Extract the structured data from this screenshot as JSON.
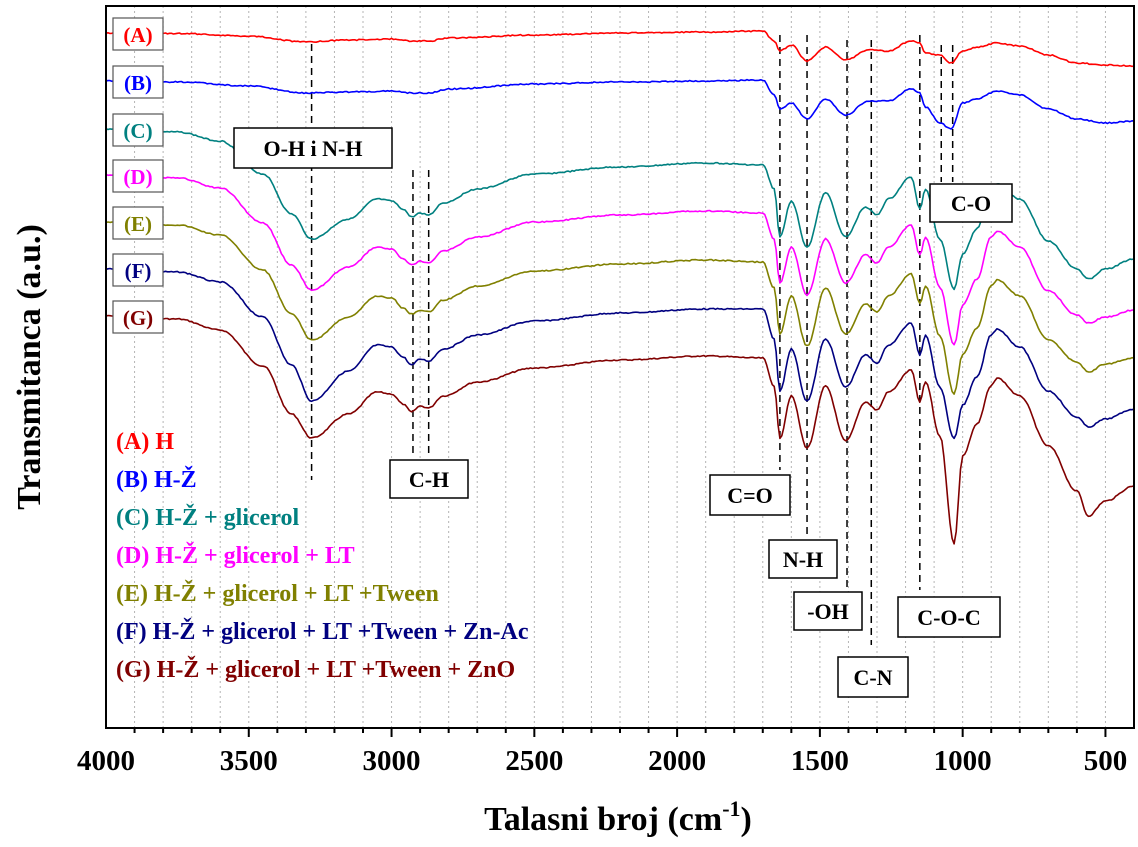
{
  "chart_data": {
    "type": "line",
    "title": "",
    "xlabel": "Talasni broj (cm",
    "xlabel_sup": "-1",
    "xlabel_close": ")",
    "ylabel": "Transmitanca (a.u.)",
    "xlim": [
      4000,
      400
    ],
    "x_reversed": true,
    "x_ticks": [
      {
        "value": 4000,
        "label": "4000"
      },
      {
        "value": 3500,
        "label": "3500"
      },
      {
        "value": 3000,
        "label": "3000"
      },
      {
        "value": 2500,
        "label": "2500"
      },
      {
        "value": 2000,
        "label": "2000"
      },
      {
        "value": 1500,
        "label": "1500"
      },
      {
        "value": 1000,
        "label": "1000"
      },
      {
        "value": 500,
        "label": "500"
      }
    ],
    "grid": "vertical dotted",
    "legend_placement": "bottom-left",
    "series": [
      {
        "tag": "(A)",
        "legend_text": "H",
        "color": "#ff0000",
        "x": [
          4000,
          3750,
          3500,
          3300,
          3150,
          3000,
          2930,
          2870,
          2800,
          2500,
          2200,
          1900,
          1700,
          1660,
          1640,
          1600,
          1545,
          1480,
          1410,
          1330,
          1260,
          1180,
          1150,
          1130,
          1080,
          1040,
          1000,
          950,
          880,
          800,
          700,
          600,
          500,
          400
        ],
        "y": [
          0,
          0.5,
          3,
          9,
          7,
          6,
          8,
          8,
          5,
          2,
          0,
          -1,
          -2,
          8,
          18,
          12,
          28,
          14,
          27,
          17,
          18,
          8,
          10,
          20,
          22,
          30,
          18,
          14,
          10,
          13,
          22,
          30,
          32,
          33
        ]
      },
      {
        "tag": "(B)",
        "legend_text": "H-Ž",
        "color": "#0000ff",
        "x": [
          4000,
          3750,
          3500,
          3300,
          3150,
          3000,
          2930,
          2870,
          2800,
          2500,
          2200,
          1900,
          1700,
          1660,
          1640,
          1600,
          1545,
          1480,
          1410,
          1330,
          1260,
          1180,
          1150,
          1130,
          1080,
          1040,
          1000,
          950,
          880,
          800,
          700,
          600,
          500,
          400
        ],
        "y": [
          0,
          1,
          5,
          12,
          11,
          10,
          12,
          12,
          8,
          3,
          1,
          0,
          -1,
          14,
          28,
          22,
          38,
          18,
          34,
          20,
          20,
          8,
          12,
          26,
          42,
          48,
          22,
          18,
          10,
          14,
          28,
          38,
          42,
          40
        ]
      },
      {
        "tag": "(C)",
        "legend_text": "H-Ž + glicerol",
        "color": "#008080",
        "x": [
          4000,
          3750,
          3600,
          3450,
          3350,
          3280,
          3150,
          3050,
          3000,
          2960,
          2930,
          2900,
          2870,
          2820,
          2700,
          2500,
          2200,
          1900,
          1700,
          1660,
          1640,
          1600,
          1545,
          1480,
          1410,
          1340,
          1300,
          1260,
          1180,
          1150,
          1130,
          1080,
          1030,
          1000,
          950,
          900,
          880,
          800,
          700,
          600,
          560,
          500,
          400
        ],
        "y": [
          0,
          3,
          12,
          45,
          85,
          110,
          90,
          70,
          72,
          80,
          88,
          84,
          86,
          74,
          60,
          45,
          38,
          34,
          36,
          60,
          108,
          72,
          118,
          64,
          108,
          78,
          86,
          70,
          48,
          80,
          60,
          110,
          160,
          125,
          100,
          60,
          55,
          70,
          112,
          140,
          150,
          140,
          130
        ]
      },
      {
        "tag": "(D)",
        "legend_text": "H-Ž + glicerol + LT",
        "color": "#ff00ff",
        "x": [
          4000,
          3750,
          3600,
          3450,
          3350,
          3280,
          3150,
          3050,
          3000,
          2960,
          2930,
          2900,
          2870,
          2820,
          2700,
          2500,
          2200,
          1900,
          1700,
          1660,
          1640,
          1600,
          1545,
          1480,
          1410,
          1340,
          1300,
          1260,
          1180,
          1150,
          1130,
          1080,
          1030,
          1000,
          950,
          900,
          880,
          800,
          700,
          600,
          560,
          500,
          400
        ],
        "y": [
          0,
          3,
          13,
          48,
          90,
          115,
          92,
          72,
          74,
          84,
          90,
          86,
          88,
          76,
          62,
          47,
          40,
          36,
          38,
          64,
          108,
          72,
          120,
          64,
          108,
          80,
          88,
          72,
          50,
          80,
          62,
          112,
          170,
          130,
          104,
          62,
          56,
          72,
          116,
          140,
          148,
          142,
          135
        ]
      },
      {
        "tag": "(E)",
        "legend_text": "H-Ž + glicerol + LT +Tween",
        "color": "#808000",
        "x": [
          4000,
          3750,
          3600,
          3450,
          3350,
          3280,
          3150,
          3050,
          3000,
          2960,
          2930,
          2900,
          2870,
          2820,
          2700,
          2500,
          2200,
          1900,
          1700,
          1660,
          1640,
          1600,
          1545,
          1480,
          1410,
          1340,
          1300,
          1260,
          1180,
          1150,
          1130,
          1080,
          1030,
          1000,
          950,
          900,
          880,
          800,
          700,
          600,
          560,
          500,
          400
        ],
        "y": [
          0,
          3,
          13,
          48,
          92,
          118,
          95,
          74,
          76,
          86,
          92,
          88,
          90,
          78,
          64,
          49,
          42,
          38,
          40,
          66,
          112,
          74,
          124,
          66,
          112,
          82,
          90,
          74,
          52,
          82,
          64,
          114,
          172,
          132,
          106,
          64,
          58,
          74,
          118,
          140,
          150,
          142,
          136
        ]
      },
      {
        "tag": "(F)",
        "legend_text": "H-Ž + glicerol + LT +Tween + Zn-Ac",
        "color": "#000080",
        "x": [
          4000,
          3750,
          3600,
          3450,
          3350,
          3280,
          3150,
          3050,
          3000,
          2960,
          2930,
          2900,
          2870,
          2820,
          2700,
          2500,
          2200,
          1900,
          1700,
          1660,
          1640,
          1600,
          1545,
          1480,
          1410,
          1340,
          1300,
          1260,
          1180,
          1150,
          1130,
          1080,
          1030,
          1000,
          950,
          900,
          880,
          800,
          700,
          600,
          560,
          500,
          400
        ],
        "y": [
          0,
          3,
          13,
          48,
          96,
          132,
          102,
          76,
          78,
          88,
          96,
          90,
          92,
          80,
          66,
          52,
          44,
          40,
          40,
          70,
          122,
          80,
          132,
          70,
          118,
          86,
          94,
          76,
          54,
          86,
          66,
          118,
          170,
          136,
          108,
          66,
          60,
          78,
          122,
          148,
          158,
          150,
          140
        ]
      },
      {
        "tag": "(G)",
        "legend_text": "H-Ž + glicerol + LT +Tween + ZnO",
        "color": "#800000",
        "x": [
          4000,
          3750,
          3600,
          3450,
          3350,
          3280,
          3150,
          3050,
          3000,
          2960,
          2930,
          2900,
          2870,
          2820,
          2700,
          2500,
          2200,
          1900,
          1700,
          1660,
          1640,
          1600,
          1545,
          1480,
          1410,
          1340,
          1300,
          1260,
          1180,
          1150,
          1130,
          1080,
          1030,
          1000,
          950,
          900,
          880,
          800,
          700,
          600,
          560,
          500,
          400
        ],
        "y": [
          0,
          3,
          14,
          50,
          98,
          122,
          98,
          76,
          78,
          88,
          96,
          90,
          92,
          80,
          66,
          52,
          44,
          40,
          42,
          70,
          122,
          80,
          132,
          70,
          125,
          86,
          94,
          76,
          54,
          86,
          66,
          120,
          228,
          140,
          108,
          70,
          62,
          80,
          130,
          175,
          200,
          185,
          170
        ]
      }
    ],
    "annotations": [
      {
        "label": "O-H  i  N-H",
        "line_x": [
          3280
        ]
      },
      {
        "label": "C-H",
        "line_x": [
          2925,
          2870
        ]
      },
      {
        "label": "C=O",
        "line_x": [
          1640
        ]
      },
      {
        "label": "N-H",
        "line_x": [
          1545
        ]
      },
      {
        "label": "-OH",
        "line_x": [
          1405
        ]
      },
      {
        "label": "C-N",
        "line_x": [
          1320
        ]
      },
      {
        "label": "C-O-C",
        "line_x": [
          1150
        ]
      },
      {
        "label": "C-O",
        "line_x": [
          1075,
          1035
        ]
      }
    ]
  }
}
